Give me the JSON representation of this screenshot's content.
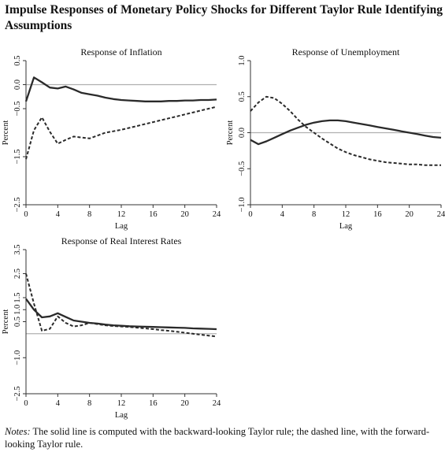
{
  "title": "Impulse Responses of Monetary Policy Shocks for Different Taylor Rule Identifying Assumptions",
  "notes": {
    "label": "Notes:",
    "text": " The solid line is computed with the backward-looking Taylor rule; the dashed line, with the forward-looking Taylor rule."
  },
  "colors": {
    "line": "#2a2a2a",
    "zero_line": "#b0b0b0",
    "frame": "#333333",
    "text": "#111111"
  },
  "chart_data": [
    {
      "type": "line",
      "title": "Response of Inflation",
      "xlabel": "Lag",
      "ylabel": "Percent",
      "xlim": [
        0,
        24
      ],
      "ylim": [
        -2.5,
        0.5
      ],
      "xticks": [
        0,
        4,
        8,
        12,
        16,
        20,
        24
      ],
      "yticks": [
        -2.5,
        -1.5,
        -0.5,
        0.0,
        0.5
      ],
      "ytick_labels": [
        "−2.5",
        "−1.5",
        "−0.5",
        "0.0",
        "0.5"
      ],
      "zero_line": 0,
      "x": [
        0,
        1,
        2,
        3,
        4,
        5,
        6,
        7,
        8,
        9,
        10,
        11,
        12,
        13,
        14,
        15,
        16,
        17,
        18,
        19,
        20,
        21,
        22,
        23,
        24
      ],
      "series": [
        {
          "style": "solid",
          "values": [
            -0.35,
            0.15,
            0.05,
            -0.06,
            -0.08,
            -0.04,
            -0.1,
            -0.17,
            -0.2,
            -0.23,
            -0.27,
            -0.3,
            -0.32,
            -0.33,
            -0.34,
            -0.35,
            -0.35,
            -0.35,
            -0.34,
            -0.34,
            -0.33,
            -0.33,
            -0.32,
            -0.32,
            -0.31
          ]
        },
        {
          "style": "dashed",
          "values": [
            -1.55,
            -0.95,
            -0.68,
            -0.98,
            -1.23,
            -1.15,
            -1.08,
            -1.1,
            -1.12,
            -1.06,
            -1.0,
            -0.97,
            -0.94,
            -0.9,
            -0.86,
            -0.82,
            -0.78,
            -0.74,
            -0.7,
            -0.66,
            -0.62,
            -0.58,
            -0.54,
            -0.5,
            -0.46
          ]
        }
      ]
    },
    {
      "type": "line",
      "title": "Response of Unemployment",
      "xlabel": "Lag",
      "ylabel": "Percent",
      "xlim": [
        0,
        24
      ],
      "ylim": [
        -1.0,
        1.0
      ],
      "xticks": [
        0,
        4,
        8,
        12,
        16,
        20,
        24
      ],
      "yticks": [
        -1.0,
        -0.5,
        0.0,
        0.5,
        1.0
      ],
      "ytick_labels": [
        "−1.0",
        "−0.5",
        "0.0",
        "0.5",
        "1.0"
      ],
      "zero_line": 0,
      "x": [
        0,
        1,
        2,
        3,
        4,
        5,
        6,
        7,
        8,
        9,
        10,
        11,
        12,
        13,
        14,
        15,
        16,
        17,
        18,
        19,
        20,
        21,
        22,
        23,
        24
      ],
      "series": [
        {
          "style": "solid",
          "values": [
            -0.1,
            -0.16,
            -0.12,
            -0.07,
            -0.02,
            0.03,
            0.07,
            0.11,
            0.14,
            0.16,
            0.17,
            0.17,
            0.16,
            0.14,
            0.12,
            0.1,
            0.08,
            0.06,
            0.04,
            0.02,
            0.0,
            -0.02,
            -0.04,
            -0.06,
            -0.07
          ]
        },
        {
          "style": "dashed",
          "values": [
            0.3,
            0.42,
            0.5,
            0.48,
            0.4,
            0.3,
            0.18,
            0.08,
            0.0,
            -0.08,
            -0.15,
            -0.22,
            -0.27,
            -0.31,
            -0.34,
            -0.37,
            -0.39,
            -0.41,
            -0.42,
            -0.43,
            -0.44,
            -0.44,
            -0.45,
            -0.45,
            -0.45
          ]
        }
      ]
    },
    {
      "type": "line",
      "title": "Response of Real Interest Rates",
      "xlabel": "Lag",
      "ylabel": "Percent",
      "xlim": [
        0,
        24
      ],
      "ylim": [
        -2.5,
        3.5
      ],
      "xticks": [
        0,
        4,
        8,
        12,
        16,
        20,
        24
      ],
      "yticks": [
        -2.5,
        -1.0,
        0.5,
        1.0,
        1.5,
        2.5,
        3.5
      ],
      "ytick_labels": [
        "−2.5",
        "−1.0",
        "0.5",
        "1.0",
        "1.5",
        "2.5",
        "3.5"
      ],
      "zero_line": 0,
      "x": [
        0,
        1,
        2,
        3,
        4,
        5,
        6,
        7,
        8,
        9,
        10,
        11,
        12,
        13,
        14,
        15,
        16,
        17,
        18,
        19,
        20,
        21,
        22,
        23,
        24
      ],
      "series": [
        {
          "style": "solid",
          "values": [
            1.45,
            1.0,
            0.68,
            0.72,
            0.85,
            0.7,
            0.55,
            0.5,
            0.45,
            0.42,
            0.38,
            0.35,
            0.33,
            0.31,
            0.3,
            0.29,
            0.28,
            0.27,
            0.26,
            0.25,
            0.24,
            0.22,
            0.21,
            0.2,
            0.19
          ]
        },
        {
          "style": "dashed",
          "values": [
            2.5,
            1.25,
            0.12,
            0.2,
            0.72,
            0.45,
            0.3,
            0.35,
            0.45,
            0.4,
            0.35,
            0.32,
            0.3,
            0.28,
            0.25,
            0.22,
            0.19,
            0.15,
            0.12,
            0.08,
            0.04,
            0.0,
            -0.04,
            -0.08,
            -0.12
          ]
        }
      ]
    }
  ]
}
